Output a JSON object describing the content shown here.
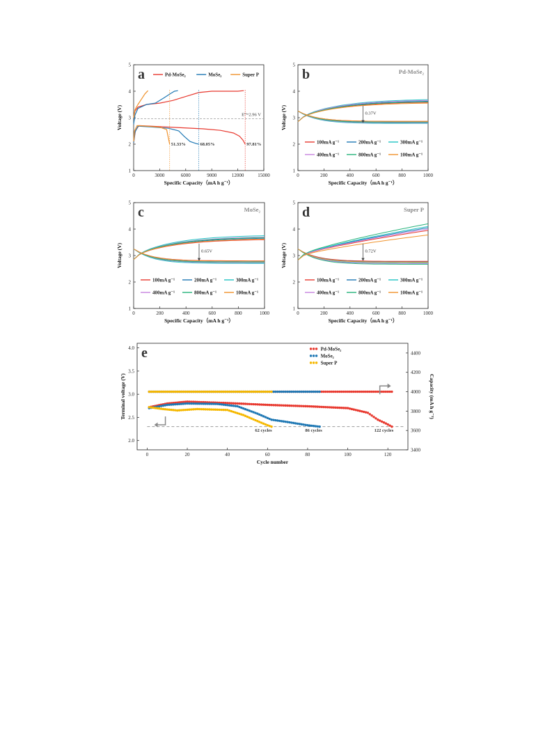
{
  "chart_data": [
    {
      "id": "a",
      "type": "line",
      "panel_label": "a",
      "xlabel": "Specific Capacity（mA h g⁻¹）",
      "ylabel": "Voltage (V)",
      "xlim": [
        0,
        15000
      ],
      "ylim": [
        1,
        5
      ],
      "xticks": [
        "0",
        "3000",
        "6000",
        "9000",
        "12000",
        "15000"
      ],
      "yticks": [
        "1",
        "2",
        "3",
        "4",
        "5"
      ],
      "legend": [
        {
          "name": "Pd-MoSe₂",
          "color": "#e8392f"
        },
        {
          "name": "MoSe₂",
          "color": "#1f78b4"
        },
        {
          "name": "Super P",
          "color": "#f0922b"
        }
      ],
      "equilibrium_label": "E⁰=2.96 V",
      "equilibrium_value": 2.96,
      "efficiency_labels": [
        {
          "text": "51.33%",
          "color": "#f0922b"
        },
        {
          "text": "68.05%",
          "color": "#1f78b4"
        },
        {
          "text": "97.81%",
          "color": "#e8392f"
        }
      ],
      "series": [
        {
          "name": "Pd-MoSe₂ discharge",
          "color": "#e8392f",
          "x": [
            0,
            200,
            600,
            2000,
            5000,
            8000,
            10000,
            11500,
            12200,
            12600,
            12850
          ],
          "y": [
            2.05,
            2.5,
            2.7,
            2.68,
            2.63,
            2.58,
            2.52,
            2.42,
            2.3,
            2.15,
            2.0
          ]
        },
        {
          "name": "Pd-MoSe₂ charge",
          "color": "#e8392f",
          "x": [
            0,
            150,
            500,
            1500,
            3000,
            4500,
            6000,
            7500,
            9000,
            10500,
            12000,
            12700
          ],
          "y": [
            3.0,
            3.25,
            3.4,
            3.5,
            3.55,
            3.65,
            3.8,
            3.95,
            4.0,
            4.0,
            4.0,
            4.02
          ]
        },
        {
          "name": "MoSe₂ discharge",
          "color": "#1f78b4",
          "x": [
            0,
            150,
            500,
            2000,
            4000,
            5200,
            5800,
            6500,
            7200,
            7500
          ],
          "y": [
            2.05,
            2.45,
            2.68,
            2.65,
            2.6,
            2.5,
            2.3,
            2.1,
            2.02,
            2.0
          ]
        },
        {
          "name": "MoSe₂ charge",
          "color": "#1f78b4",
          "x": [
            0,
            150,
            500,
            1500,
            2500,
            3500,
            4200,
            4700,
            5100
          ],
          "y": [
            2.75,
            3.1,
            3.35,
            3.5,
            3.55,
            3.75,
            3.9,
            4.0,
            4.02
          ]
        },
        {
          "name": "Super P discharge",
          "color": "#f0922b",
          "x": [
            0,
            100,
            400,
            1500,
            3000,
            3800,
            4150
          ],
          "y": [
            2.1,
            2.5,
            2.7,
            2.68,
            2.64,
            2.55,
            2.0
          ]
        },
        {
          "name": "Super P charge",
          "color": "#f0922b",
          "x": [
            0,
            150,
            500,
            900,
            1300,
            1650
          ],
          "y": [
            3.0,
            3.3,
            3.5,
            3.7,
            3.9,
            4.02
          ]
        }
      ]
    },
    {
      "id": "b",
      "type": "line",
      "panel_label": "b",
      "title": "Pd-MoSe₂",
      "xlabel": "Specific Capacity（mA h g⁻¹）",
      "ylabel": "Voltage (V)",
      "xlim": [
        0,
        1000
      ],
      "ylim": [
        1,
        5
      ],
      "xticks": [
        "0",
        "200",
        "400",
        "600",
        "800",
        "1000"
      ],
      "yticks": [
        "1",
        "2",
        "3",
        "4",
        "5"
      ],
      "gap_label": "0.37V",
      "legend": [
        {
          "name": "100mA g⁻¹",
          "color": "#e8392f"
        },
        {
          "name": "200mA g⁻¹",
          "color": "#1f78b4"
        },
        {
          "name": "300mA g⁻¹",
          "color": "#20c3c3"
        },
        {
          "name": "400mA g⁻¹",
          "color": "#c783e0"
        },
        {
          "name": "800mA g⁻¹",
          "color": "#26b37a"
        },
        {
          "name": "100mA g⁻¹",
          "color": "#f0922b"
        }
      ],
      "series": [
        {
          "name": "100mA g⁻¹",
          "color": "#e8392f",
          "charge_end": 3.58,
          "discharge_end": 2.86
        },
        {
          "name": "200mA g⁻¹",
          "color": "#1f78b4",
          "charge_end": 3.62,
          "discharge_end": 2.83
        },
        {
          "name": "300mA g⁻¹",
          "color": "#20c3c3",
          "charge_end": 3.68,
          "discharge_end": 2.78
        },
        {
          "name": "400mA g⁻¹",
          "color": "#c783e0",
          "charge_end": 3.65,
          "discharge_end": 2.8
        },
        {
          "name": "800mA g⁻¹",
          "color": "#26b37a",
          "charge_end": 3.6,
          "discharge_end": 2.82
        },
        {
          "name": "100mA g⁻¹",
          "color": "#f0922b",
          "charge_end": 3.55,
          "discharge_end": 2.86
        }
      ]
    },
    {
      "id": "c",
      "type": "line",
      "panel_label": "c",
      "title": "MoSe₂",
      "xlabel": "Specific Capacity（mA h g⁻¹）",
      "ylabel": "Voltage (V)",
      "xlim": [
        0,
        1000
      ],
      "ylim": [
        1,
        5
      ],
      "xticks": [
        "0",
        "200",
        "400",
        "600",
        "800",
        "1000"
      ],
      "yticks": [
        "1",
        "2",
        "3",
        "4",
        "5"
      ],
      "gap_label": "0.65V",
      "legend": [
        {
          "name": "100mA g⁻¹",
          "color": "#e8392f"
        },
        {
          "name": "200mA g⁻¹",
          "color": "#1f78b4"
        },
        {
          "name": "300mA g⁻¹",
          "color": "#20c3c3"
        },
        {
          "name": "400mA g⁻¹",
          "color": "#c783e0"
        },
        {
          "name": "800mA g⁻¹",
          "color": "#26b37a"
        },
        {
          "name": "100mA g⁻¹",
          "color": "#f0922b"
        }
      ],
      "series": [
        {
          "name": "100mA g⁻¹",
          "color": "#e8392f",
          "charge_end": 3.6,
          "discharge_end": 2.8
        },
        {
          "name": "200mA g⁻¹",
          "color": "#1f78b4",
          "charge_end": 3.65,
          "discharge_end": 2.76
        },
        {
          "name": "300mA g⁻¹",
          "color": "#20c3c3",
          "charge_end": 3.75,
          "discharge_end": 2.7
        },
        {
          "name": "400mA g⁻¹",
          "color": "#c783e0",
          "charge_end": 3.7,
          "discharge_end": 2.73
        },
        {
          "name": "800mA g⁻¹",
          "color": "#26b37a",
          "charge_end": 3.68,
          "discharge_end": 2.75
        },
        {
          "name": "100mA g⁻¹",
          "color": "#f0922b",
          "charge_end": 3.62,
          "discharge_end": 2.79
        }
      ]
    },
    {
      "id": "d",
      "type": "line",
      "panel_label": "d",
      "title": "Super P",
      "xlabel": "Specific Capacity（mA h g⁻¹）",
      "ylabel": "Voltage (V)",
      "xlim": [
        0,
        1000
      ],
      "ylim": [
        1,
        5
      ],
      "xticks": [
        "0",
        "200",
        "400",
        "600",
        "800",
        "1000"
      ],
      "yticks": [
        "1",
        "2",
        "3",
        "4",
        "5"
      ],
      "gap_label": "0.72V",
      "legend": [
        {
          "name": "100mA g⁻¹",
          "color": "#e8392f"
        },
        {
          "name": "200mA g⁻¹",
          "color": "#1f78b4"
        },
        {
          "name": "300mA g⁻¹",
          "color": "#20c3c3"
        },
        {
          "name": "400mA g⁻¹",
          "color": "#c783e0"
        },
        {
          "name": "800mA g⁻¹",
          "color": "#26b37a"
        },
        {
          "name": "100mA g⁻¹",
          "color": "#f0922b"
        }
      ],
      "series": [
        {
          "name": "100mA g⁻¹",
          "color": "#e8392f",
          "charge_end": 3.95,
          "discharge_end": 2.78
        },
        {
          "name": "200mA g⁻¹",
          "color": "#1f78b4",
          "charge_end": 4.05,
          "discharge_end": 2.76
        },
        {
          "name": "300mA g⁻¹",
          "color": "#20c3c3",
          "charge_end": 4.1,
          "discharge_end": 2.72
        },
        {
          "name": "400mA g⁻¹",
          "color": "#c783e0",
          "charge_end": 4.0,
          "discharge_end": 2.7
        },
        {
          "name": "800mA g⁻¹",
          "color": "#26b37a",
          "charge_end": 4.2,
          "discharge_end": 2.67
        },
        {
          "name": "100mA g⁻¹",
          "color": "#f0922b",
          "charge_end": 3.78,
          "discharge_end": 2.75
        }
      ]
    },
    {
      "id": "e",
      "type": "scatter",
      "panel_label": "e",
      "xlabel": "Cycle number",
      "ylabel": "Terminal voltage (V)",
      "y2label": "Capacity (mA h g⁻¹)",
      "xlim": [
        -5,
        130
      ],
      "ylim": [
        1.8,
        4.1
      ],
      "y2lim": [
        3400,
        4500
      ],
      "xticks": [
        "0",
        "20",
        "40",
        "60",
        "80",
        "100",
        "120"
      ],
      "yticks": [
        "2.0",
        "2.5",
        "3.0",
        "3.5",
        "4.0"
      ],
      "y2ticks": [
        "3400",
        "3600",
        "3800",
        "4000",
        "4200",
        "4400"
      ],
      "cutoff_voltage": 2.3,
      "legend": [
        {
          "name": "Pd-MoSe₂",
          "color": "#e8392f"
        },
        {
          "name": "MoSe₂",
          "color": "#1f78b4"
        },
        {
          "name": "Super P",
          "color": "#f5b800"
        }
      ],
      "cycle_labels": [
        {
          "text": "62 cycles",
          "color": "#f5b800",
          "cycle": 58
        },
        {
          "text": "86 cycles",
          "color": "#1f78b4",
          "cycle": 83
        },
        {
          "text": "122 cycles",
          "color": "#e8392f",
          "cycle": 118
        }
      ],
      "capacity_value": 4000,
      "series": [
        {
          "name": "Pd-MoSe₂",
          "color": "#e8392f",
          "cycles": 122,
          "voltage_keys": [
            [
              1,
              2.72
            ],
            [
              10,
              2.8
            ],
            [
              20,
              2.84
            ],
            [
              40,
              2.81
            ],
            [
              60,
              2.77
            ],
            [
              80,
              2.74
            ],
            [
              100,
              2.7
            ],
            [
              110,
              2.6
            ],
            [
              115,
              2.45
            ],
            [
              119,
              2.37
            ],
            [
              122,
              2.3
            ]
          ]
        },
        {
          "name": "MoSe₂",
          "color": "#1f78b4",
          "cycles": 86,
          "voltage_keys": [
            [
              1,
              2.7
            ],
            [
              10,
              2.77
            ],
            [
              20,
              2.8
            ],
            [
              35,
              2.79
            ],
            [
              45,
              2.74
            ],
            [
              55,
              2.58
            ],
            [
              62,
              2.45
            ],
            [
              70,
              2.4
            ],
            [
              80,
              2.33
            ],
            [
              86,
              2.3
            ]
          ]
        },
        {
          "name": "Super P",
          "color": "#f5b800",
          "cycles": 62,
          "voltage_keys": [
            [
              1,
              2.72
            ],
            [
              8,
              2.68
            ],
            [
              15,
              2.65
            ],
            [
              25,
              2.68
            ],
            [
              40,
              2.66
            ],
            [
              48,
              2.55
            ],
            [
              55,
              2.42
            ],
            [
              60,
              2.33
            ],
            [
              62,
              2.3
            ]
          ]
        }
      ]
    }
  ]
}
